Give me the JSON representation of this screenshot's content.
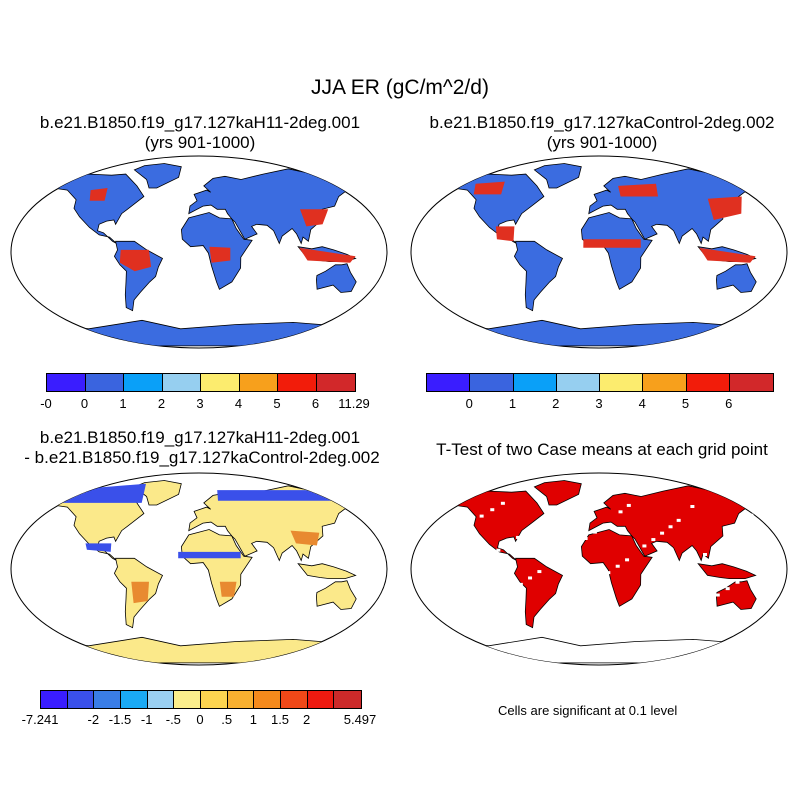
{
  "main_title": "JJA ER (gC/m^2/d)",
  "panels": {
    "top_left": {
      "title_line1": "b.e21.B1850.f19_g17.127kaH11-2deg.001",
      "title_line2": "(yrs 901-1000)",
      "colors": {
        "ocean": "#ffffff",
        "land_base": "#3b6ce0",
        "antarctica": "#3b6ce0",
        "hotspot": "#e03020"
      }
    },
    "top_right": {
      "title_line1": "b.e21.B1850.f19_g17.127kaControl-2deg.002",
      "title_line2": "(yrs 901-1000)",
      "colors": {
        "ocean": "#ffffff",
        "land_base": "#3b6ce0",
        "antarctica": "#3b6ce0",
        "hotspot": "#e03020"
      }
    },
    "bottom_left": {
      "title_line1": "b.e21.B1850.f19_g17.127kaH11-2deg.001",
      "title_line2": "- b.e21.B1850.f19_g17.127kaControl-2deg.002",
      "colors": {
        "ocean": "#ffffff",
        "land_base": "#fbe98a",
        "antarctica": "#fbe98a",
        "hotspot": "#e88a30"
      }
    },
    "bottom_right": {
      "title_line1": "T-Test of two Case means at each grid point",
      "title_line2": "",
      "note": "Cells are significant at 0.1 level",
      "colors": {
        "ocean": "#ffffff",
        "land_base": "#e00000",
        "antarctica": "#ffffff",
        "hotspot": "#e00000"
      }
    }
  },
  "colorbars": {
    "top_left": {
      "colors": [
        "#3a1dff",
        "#3a64df",
        "#0aa0f8",
        "#96cff0",
        "#fcec6e",
        "#f7a01c",
        "#f21c0a",
        "#d2282a"
      ],
      "labels": [
        "-0",
        "0",
        "1",
        "2",
        "3",
        "4",
        "5",
        "6",
        "11.29"
      ]
    },
    "top_right": {
      "colors": [
        "#3a1dff",
        "#3a64df",
        "#0aa0f8",
        "#96cff0",
        "#fcec6e",
        "#f7a01c",
        "#f21c0a",
        "#d2282a"
      ],
      "labels": [
        "",
        "0",
        "1",
        "2",
        "3",
        "4",
        "5",
        "6",
        ""
      ]
    },
    "bottom_left": {
      "colors": [
        "#3a1dff",
        "#3a50ea",
        "#3a7de6",
        "#1aaaf5",
        "#9ad0f2",
        "#fbee8c",
        "#fcd450",
        "#f8b030",
        "#f58a1c",
        "#f04818",
        "#ee1a10",
        "#cc2a2a"
      ],
      "labels": [
        "-7.241",
        "",
        "-2",
        "-1.5",
        "-1",
        "-.5",
        "0",
        ".5",
        "1",
        "1.5",
        "2",
        "",
        "5.497"
      ]
    }
  }
}
